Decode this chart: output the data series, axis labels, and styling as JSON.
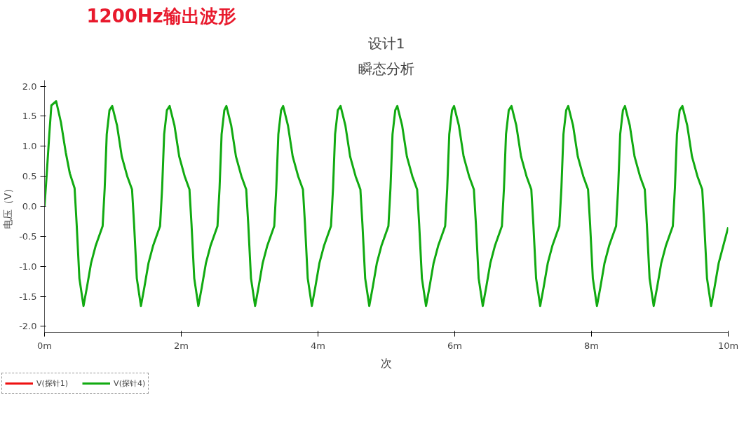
{
  "chart_data": {
    "type": "line",
    "title": "设计1",
    "subtitle": "瞬态分析",
    "xlabel": "次",
    "ylabel": "电压（V）",
    "annotations": [
      "1200Hz输出波形"
    ],
    "xlim": [
      0,
      10
    ],
    "xticks": [
      {
        "value": 0,
        "label": "0m"
      },
      {
        "value": 2,
        "label": "2m"
      },
      {
        "value": 4,
        "label": "4m"
      },
      {
        "value": 6,
        "label": "6m"
      },
      {
        "value": 8,
        "label": "8m"
      },
      {
        "value": 10,
        "label": "10m"
      }
    ],
    "ylim": [
      -2.1,
      2.1
    ],
    "yticks": [
      {
        "value": -2,
        "label": "-2.0"
      },
      {
        "value": -1.5,
        "label": "-1.5"
      },
      {
        "value": -1,
        "label": "-1.0"
      },
      {
        "value": -0.5,
        "label": "-0.5"
      },
      {
        "value": 0,
        "label": "0.0"
      },
      {
        "value": 0.5,
        "label": "0.5"
      },
      {
        "value": 1,
        "label": "1.0"
      },
      {
        "value": 1.5,
        "label": "1.5"
      },
      {
        "value": 2,
        "label": "2.0"
      }
    ],
    "grid": false,
    "legend": "bottom left",
    "line_style": "solid",
    "series": [
      {
        "name": "V(探针1)",
        "color": "#ee1111"
      },
      {
        "name": "V(探针4)",
        "color": "#11aa11",
        "x": [
          0,
          0.03,
          0.07,
          0.1,
          0.17,
          0.24,
          0.31,
          0.37,
          0.44,
          0.47,
          0.51,
          0.57,
          0.62,
          0.68,
          0.75,
          0.85,
          0.88,
          0.91,
          0.95,
          0.99,
          1.06,
          1.13,
          1.21,
          1.28,
          1.31,
          1.35,
          1.41,
          1.46,
          1.52,
          1.59,
          1.69,
          1.72,
          1.75,
          1.79,
          1.83,
          1.9,
          1.97,
          2.05,
          2.12,
          2.15,
          2.19,
          2.25,
          2.3,
          2.36,
          2.43,
          2.53,
          2.56,
          2.59,
          2.63,
          2.66,
          2.73,
          2.8,
          2.88,
          2.95,
          2.98,
          3.02,
          3.08,
          3.13,
          3.19,
          3.26,
          3.36,
          3.39,
          3.42,
          3.46,
          3.49,
          3.56,
          3.63,
          3.71,
          3.78,
          3.81,
          3.85,
          3.91,
          3.96,
          4.02,
          4.09,
          4.19,
          4.22,
          4.25,
          4.29,
          4.33,
          4.4,
          4.47,
          4.55,
          4.62,
          4.65,
          4.69,
          4.75,
          4.8,
          4.86,
          4.93,
          5.03,
          5.06,
          5.09,
          5.13,
          5.16,
          5.23,
          5.3,
          5.38,
          5.45,
          5.48,
          5.52,
          5.58,
          5.63,
          5.69,
          5.76,
          5.86,
          5.89,
          5.92,
          5.96,
          5.99,
          6.06,
          6.13,
          6.21,
          6.28,
          6.31,
          6.35,
          6.41,
          6.46,
          6.52,
          6.59,
          6.69,
          6.72,
          6.75,
          6.79,
          6.83,
          6.9,
          6.97,
          7.05,
          7.12,
          7.15,
          7.19,
          7.25,
          7.3,
          7.36,
          7.43,
          7.53,
          7.56,
          7.59,
          7.63,
          7.66,
          7.73,
          7.8,
          7.88,
          7.95,
          7.98,
          8.02,
          8.08,
          8.13,
          8.19,
          8.26,
          8.36,
          8.39,
          8.42,
          8.46,
          8.49,
          8.56,
          8.63,
          8.71,
          8.78,
          8.81,
          8.85,
          8.91,
          8.96,
          9.02,
          9.09,
          9.19,
          9.22,
          9.25,
          9.29,
          9.33,
          9.4,
          9.47,
          9.55,
          9.62,
          9.65,
          9.69,
          9.75,
          9.8,
          9.86,
          9.93,
          10.0
        ],
        "values": [
          0,
          0.5,
          1.2,
          1.68,
          1.75,
          1.4,
          0.9,
          0.55,
          0.3,
          -0.3,
          -1.2,
          -1.66,
          -1.35,
          -0.95,
          -0.65,
          -0.33,
          0.3,
          1.2,
          1.6,
          1.67,
          1.35,
          0.83,
          0.5,
          0.28,
          -0.3,
          -1.2,
          -1.66,
          -1.35,
          -0.95,
          -0.65,
          -0.33,
          0.3,
          1.2,
          1.6,
          1.67,
          1.35,
          0.83,
          0.5,
          0.28,
          -0.3,
          -1.2,
          -1.66,
          -1.35,
          -0.95,
          -0.65,
          -0.33,
          0.3,
          1.2,
          1.6,
          1.67,
          1.35,
          0.83,
          0.5,
          0.28,
          -0.3,
          -1.2,
          -1.66,
          -1.35,
          -0.95,
          -0.65,
          -0.33,
          0.3,
          1.2,
          1.6,
          1.67,
          1.35,
          0.83,
          0.5,
          0.28,
          -0.3,
          -1.2,
          -1.66,
          -1.35,
          -0.95,
          -0.65,
          -0.33,
          0.3,
          1.2,
          1.6,
          1.67,
          1.35,
          0.83,
          0.5,
          0.28,
          -0.3,
          -1.2,
          -1.66,
          -1.35,
          -0.95,
          -0.65,
          -0.33,
          0.3,
          1.2,
          1.6,
          1.67,
          1.35,
          0.83,
          0.5,
          0.28,
          -0.3,
          -1.2,
          -1.66,
          -1.35,
          -0.95,
          -0.65,
          -0.33,
          0.3,
          1.2,
          1.6,
          1.67,
          1.35,
          0.83,
          0.5,
          0.28,
          -0.3,
          -1.2,
          -1.66,
          -1.35,
          -0.95,
          -0.65,
          -0.33,
          0.3,
          1.2,
          1.6,
          1.67,
          1.35,
          0.83,
          0.5,
          0.28,
          -0.3,
          -1.2,
          -1.66,
          -1.35,
          -0.95,
          -0.65,
          -0.33,
          0.3,
          1.2,
          1.6,
          1.67,
          1.35,
          0.83,
          0.5,
          0.28,
          -0.3,
          -1.2,
          -1.66,
          -1.35,
          -0.95,
          -0.65,
          -0.33,
          0.3,
          1.2,
          1.6,
          1.67,
          1.35,
          0.83,
          0.5,
          0.28,
          -0.3,
          -1.2,
          -1.66,
          -1.35,
          -0.95,
          -0.65,
          -0.33,
          0.3,
          1.2,
          1.6,
          1.67,
          1.35,
          0.83,
          0.5,
          0.28,
          -0.3,
          -1.2,
          -1.66,
          -1.35,
          -0.95,
          -0.65,
          -0.35
        ]
      }
    ]
  }
}
